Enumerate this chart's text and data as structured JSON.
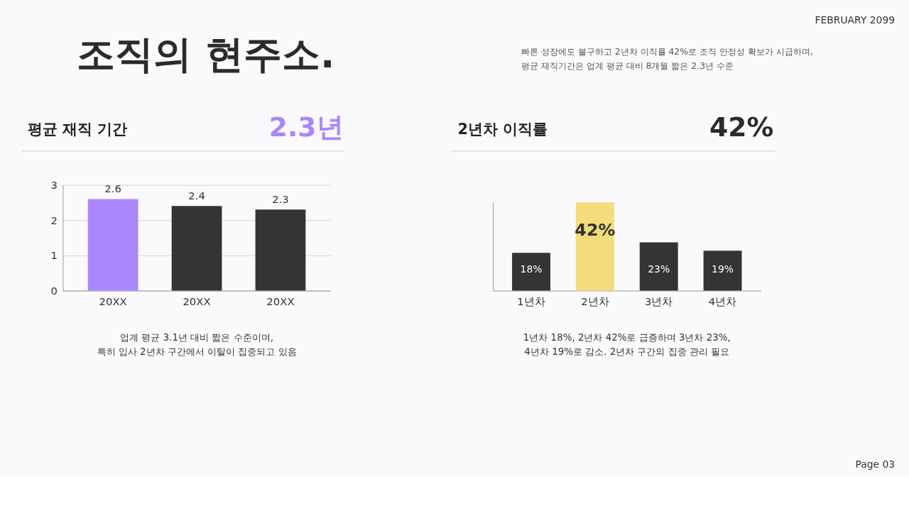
{
  "chart_data": [
    {
      "type": "other",
      "title": "조직의 현주소.",
      "subtitle": "빠른 성장에도 불구하고 2년차 이직률 42%로 조직 안정성 확보가 시급하며,\n평균 재직기간은 업계 평균 대비 8개월 짧은 2.3년 수준",
      "annotations": [
        "FEBRUARY 2099",
        "Page 03"
      ]
    },
    {
      "type": "bar",
      "title": "평균 재직 기간",
      "categories": [
        "20XX",
        "20XX",
        "20XX"
      ],
      "values": [
        2.6,
        2.4,
        2.3
      ],
      "colors": [
        "#a987fb",
        "#353336",
        "#353336"
      ],
      "ylim": [
        0,
        3
      ],
      "yticks": [
        0,
        1,
        2,
        3
      ],
      "grid": "y",
      "data_labels": true,
      "annotations": [
        "2.3년",
        "업계 평균 3.1년 대비 짧은 수준이며,\n특히 입사 2년차 구간에서 이탈이 집중되고 있음"
      ]
    },
    {
      "type": "bar",
      "title": "2년차 이직률",
      "categories": [
        "1년차",
        "2년차",
        "3년차",
        "4년차"
      ],
      "values": [
        18,
        42,
        23,
        19
      ],
      "colors": [
        "#353336",
        "#f2dc7c",
        "#353336",
        "#353336"
      ],
      "value_labels": [
        "18%",
        "42%",
        "23%",
        "19%"
      ],
      "tick_labels": "x",
      "annotations": [
        "42%",
        "1년차 18%, 2년차 42%로 급증하며 3년차 23%,\n4년차 19%로 감소. 2년차 구간의 집중 관리 필요"
      ]
    }
  ]
}
